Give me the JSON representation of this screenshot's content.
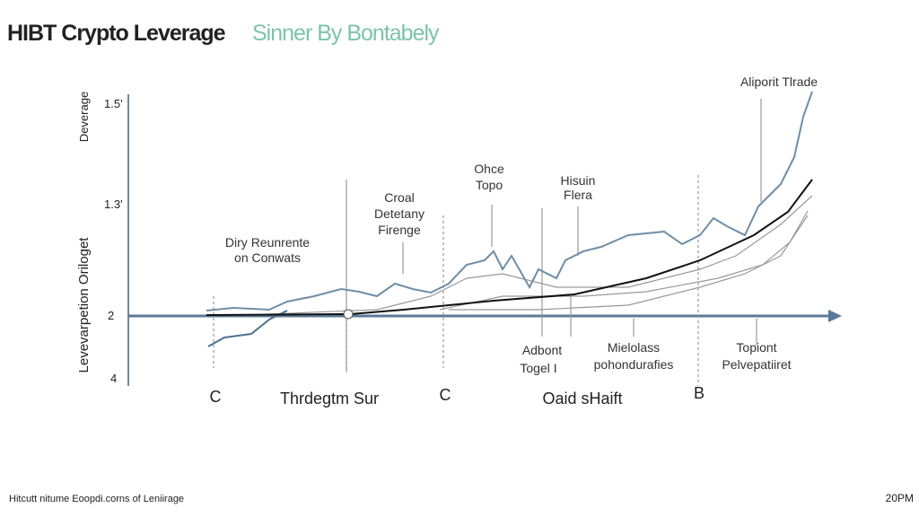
{
  "header": {
    "title": "HIBT Crypto Leverage",
    "subtitle": "Sinner By Bontabely"
  },
  "axis": {
    "y_label_top": "Deverage",
    "y_label_side": "Levevarpetion Oriloget",
    "ticks": [
      "1.5'",
      "1.3'",
      "2",
      "4"
    ]
  },
  "annotations": [
    {
      "lines": [
        "Aliporit Tlrade"
      ]
    },
    {
      "lines": [
        "Ohce",
        "Topo"
      ]
    },
    {
      "lines": [
        "Hisuin",
        "Flera"
      ]
    },
    {
      "lines": [
        "Croal",
        "Detetany",
        "Firenge"
      ]
    },
    {
      "lines": [
        "Diry Reunrente",
        "on Conwats"
      ]
    },
    {
      "lines": [
        "Adbont",
        "Togel I"
      ]
    },
    {
      "lines": [
        "Mielolass",
        "pohondurafies"
      ]
    },
    {
      "lines": [
        "Topiont",
        "Pelvepatiiret"
      ]
    }
  ],
  "x_labels": [
    "C",
    "Thrdegtm Sur",
    "C",
    "Oaid sHaift",
    "B"
  ],
  "footer": {
    "left": "Hitcutt nitume Eoopdi.corns of Leniirage",
    "right": "20PM"
  }
}
